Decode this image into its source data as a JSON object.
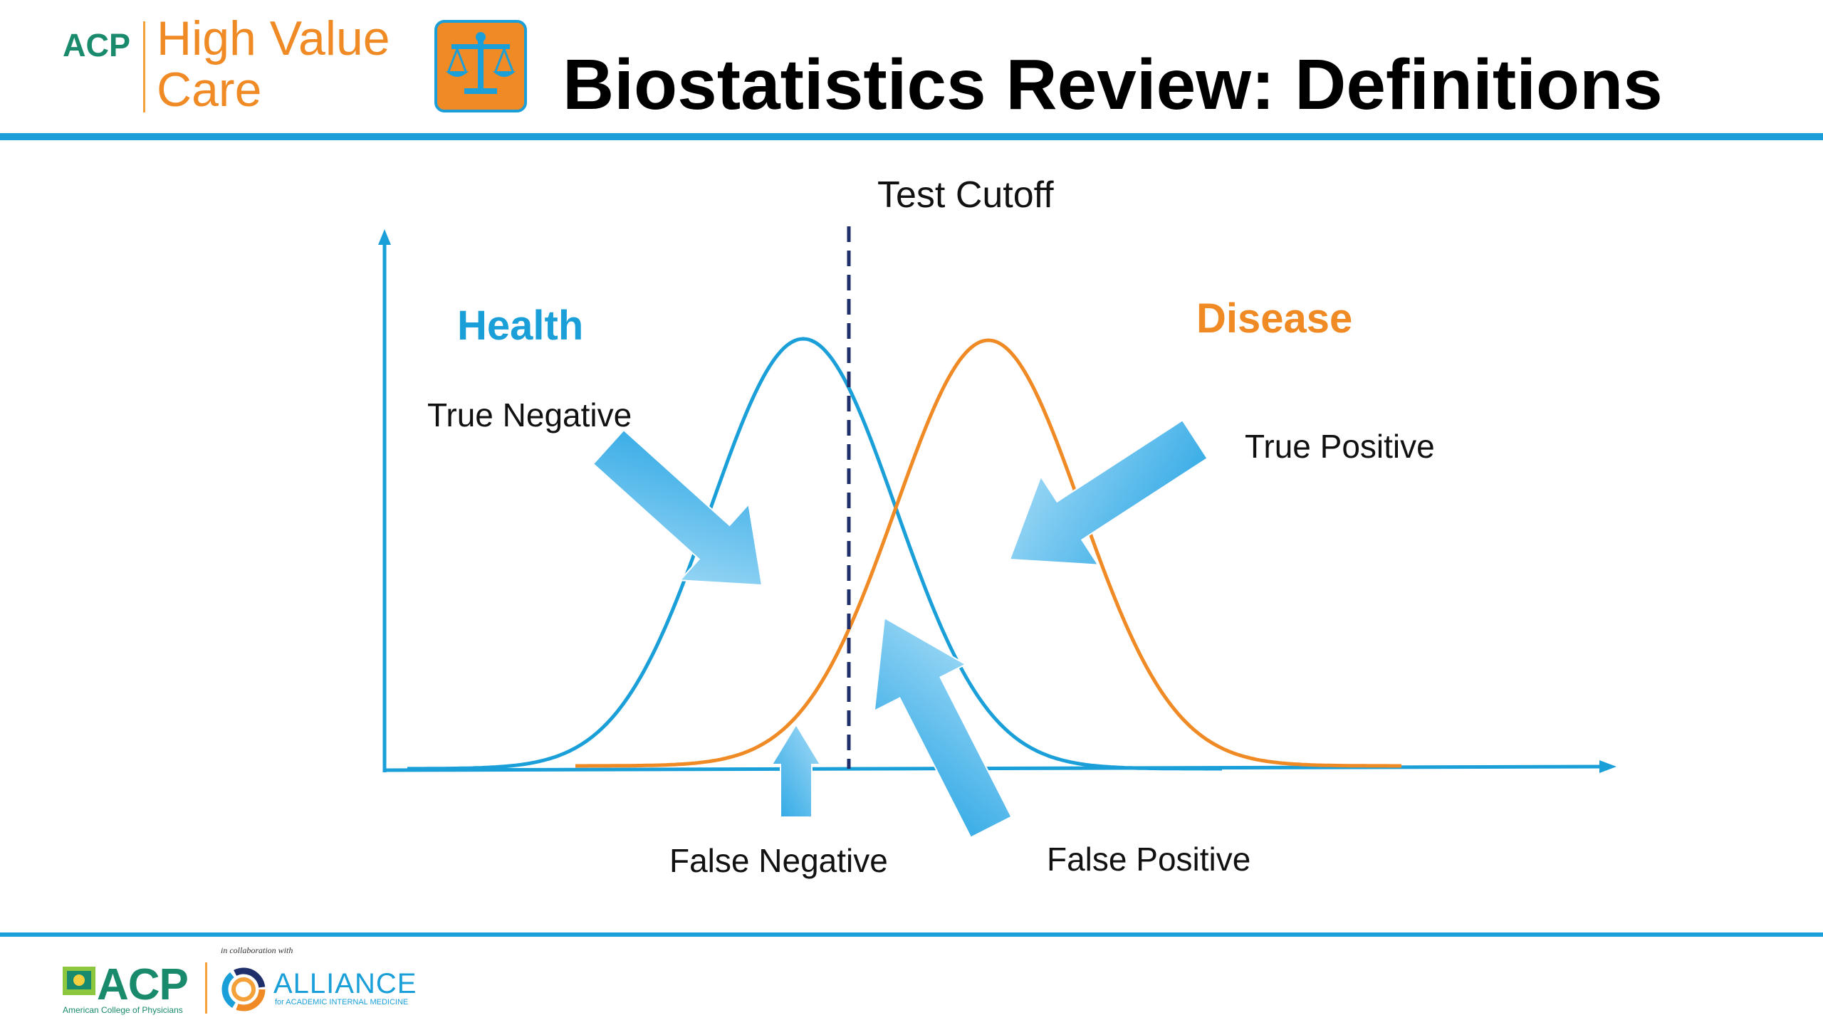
{
  "header": {
    "logo_acp": "ACP",
    "logo_hv_line1": "High Value",
    "logo_hv_line2": "Care",
    "title": "Biostatistics Review: Definitions"
  },
  "diagram": {
    "cutoff_label": "Test Cutoff",
    "health_label": "Health",
    "disease_label": "Disease",
    "true_negative": "True Negative",
    "true_positive": "True Positive",
    "false_negative": "False Negative",
    "false_positive": "False Positive"
  },
  "footer": {
    "acp_logo": "ACP",
    "acp_full": "American College of Physicians",
    "collab": "in collaboration with",
    "alliance": "ALLIANCE",
    "alliance_sub": "for ACADEMIC INTERNAL MEDICINE"
  },
  "colors": {
    "health": "#1a9fd9",
    "disease": "#f08a24",
    "cutoff": "#1f2f6b",
    "arrow": "#5cc1ef"
  }
}
